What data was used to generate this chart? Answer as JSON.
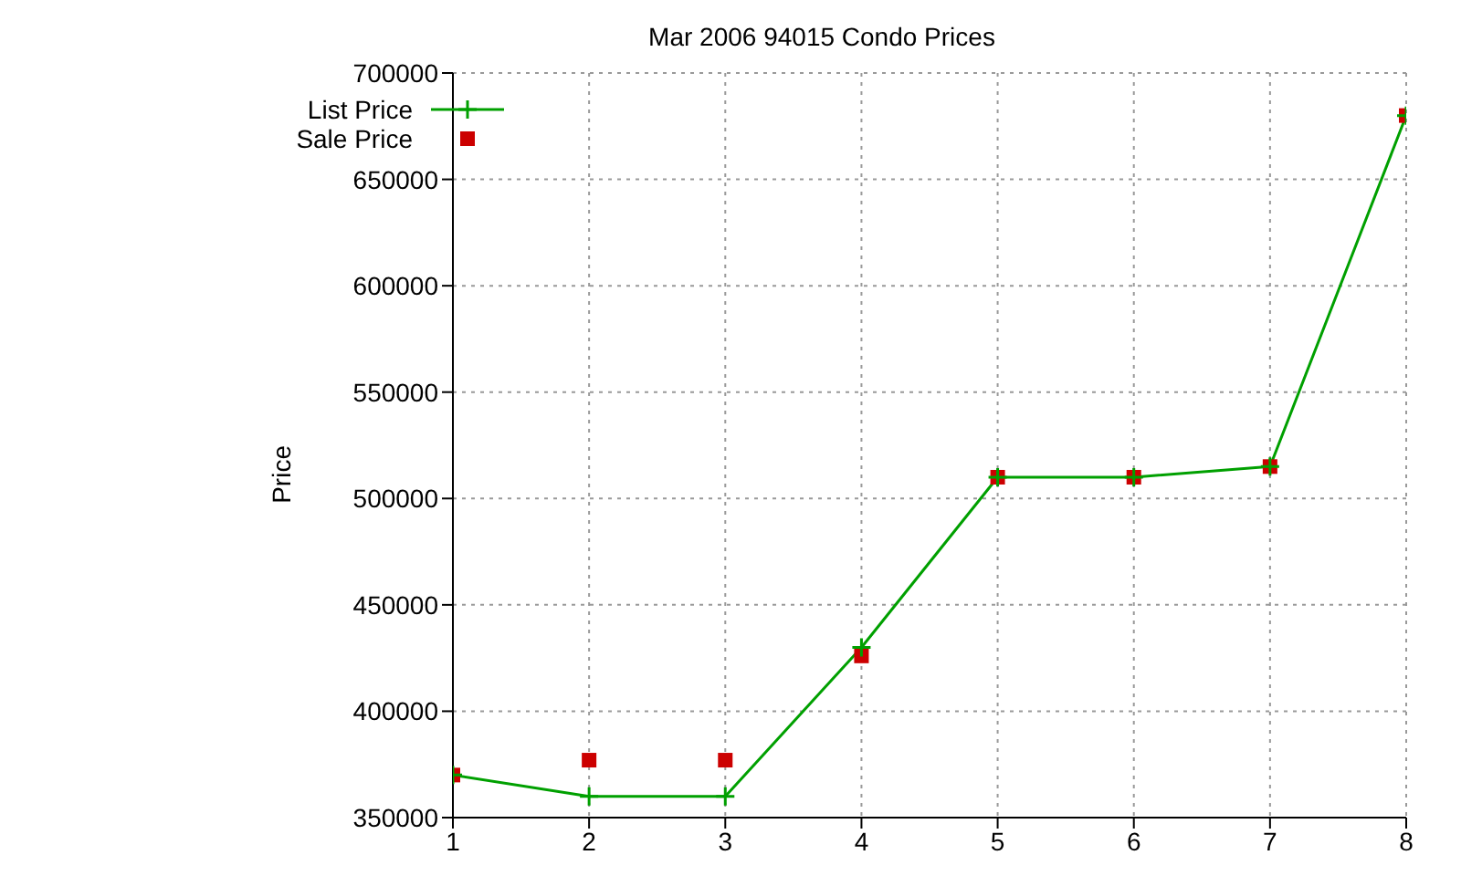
{
  "chart_data": {
    "type": "line",
    "title": "Mar 2006 94015 Condo Prices",
    "ylabel": "Price",
    "x": [
      1,
      2,
      3,
      4,
      5,
      6,
      7,
      8
    ],
    "series": [
      {
        "name": "List Price",
        "color": "#00a000",
        "marker": "cross",
        "values": [
          370000,
          360000,
          360000,
          430000,
          510000,
          510000,
          515000,
          680000
        ]
      },
      {
        "name": "Sale Price",
        "type": "scatter",
        "color": "#cc0000",
        "marker": "square",
        "values": [
          370000,
          377000,
          377000,
          426000,
          510000,
          510000,
          515000,
          680000
        ]
      }
    ],
    "xlim": [
      1,
      8
    ],
    "xticks": [
      1,
      2,
      3,
      4,
      5,
      6,
      7,
      8
    ],
    "ylim": [
      350000,
      700000
    ],
    "yticks": [
      350000,
      400000,
      450000,
      500000,
      550000,
      600000,
      650000,
      700000
    ],
    "grid": true,
    "legend": "top left"
  }
}
